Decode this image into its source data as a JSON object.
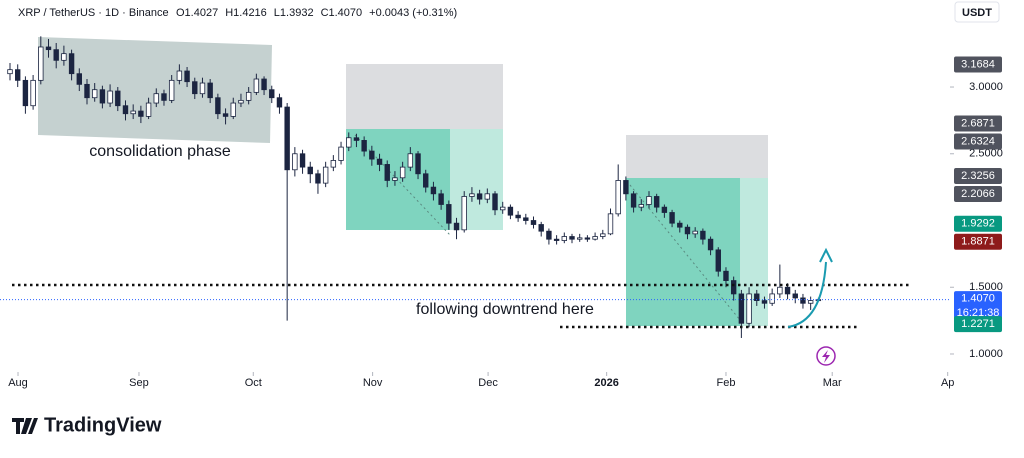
{
  "header": {
    "symbol": "XRP / TetherUS · 1D · Binance",
    "ohlc": [
      "O1.4027",
      "H1.4216",
      "L1.3932",
      "C1.4070",
      "+0.0043 (+0.31%)"
    ],
    "currency": "USDT"
  },
  "annotations": {
    "consolidation": "consolidation phase",
    "downtrend": "following downtrend here"
  },
  "logo": "TradingView",
  "chart_data": {
    "type": "candlestick",
    "up_color": "#ffffff",
    "down_color": "#1c2541",
    "wick_color": "#1c2541",
    "xlim": [
      -1.3,
      122.1
    ],
    "ylim": [
      0.88,
      3.652
    ],
    "xticks": [
      {
        "value": 1.04,
        "label": "Aug"
      },
      {
        "value": 16.75,
        "label": "Sep"
      },
      {
        "value": 31.6,
        "label": "Oct"
      },
      {
        "value": 47.1,
        "label": "Nov"
      },
      {
        "value": 62.1,
        "label": "Dec"
      },
      {
        "value": 77.5,
        "label": "2026"
      },
      {
        "value": 93,
        "label": "Feb"
      },
      {
        "value": 106.8,
        "label": "Mar"
      },
      {
        "value": 121.8,
        "label": "Ap"
      }
    ],
    "yticks": [
      {
        "value": 1,
        "label": "1.0000"
      },
      {
        "value": 1.5,
        "label": "1.5000"
      },
      {
        "value": 2.5,
        "label": "2.5000"
      },
      {
        "value": 3,
        "label": "3.0000"
      }
    ],
    "price_tags": [
      {
        "value": 3.1684,
        "label": "3.1684",
        "color": "#50535e"
      },
      {
        "value": 2.6871,
        "label": "2.6871",
        "color": "#50535e"
      },
      {
        "value": 2.6324,
        "label": "2.6324",
        "color": "#50535e"
      },
      {
        "value": 2.3256,
        "label": "2.3256",
        "color": "#50535e"
      },
      {
        "value": 2.2066,
        "label": "2.2066",
        "color": "#50535e"
      },
      {
        "value": 1.9292,
        "label": "1.9292",
        "color": "#089981"
      },
      {
        "value": 1.8871,
        "label": "1.8871",
        "color": "#8e1b1b"
      },
      {
        "value": 1.407,
        "label": "1.4070",
        "color": "#2962ff",
        "countdown": "16:21:38"
      },
      {
        "value": 1.2271,
        "label": "1.2271",
        "color": "#089981"
      }
    ],
    "open": [
      3.1,
      3.13,
      3.05,
      2.86,
      3.05,
      3.3,
      3.28,
      3.2,
      3.25,
      3.1,
      3.02,
      2.92,
      2.98,
      2.88,
      2.97,
      2.86,
      2.8,
      2.82,
      2.78,
      2.88,
      2.95,
      2.9,
      3.05,
      3.12,
      3.04,
      2.95,
      3.03,
      2.92,
      2.8,
      2.78,
      2.88,
      2.9,
      2.96,
      3.06,
      2.98,
      2.92,
      2.85,
      2.38,
      2.5,
      2.4,
      2.35,
      2.28,
      2.4,
      2.45,
      2.55,
      2.62,
      2.6,
      2.52,
      2.46,
      2.42,
      2.3,
      2.32,
      2.4,
      2.5,
      2.35,
      2.25,
      2.2,
      2.12,
      1.98,
      1.93,
      2.18,
      2.2,
      2.16,
      2.2,
      2.08,
      2.1,
      2.04,
      2.02,
      2.0,
      1.97,
      1.92,
      1.86,
      1.85,
      1.88,
      1.86,
      1.87,
      1.86,
      1.88,
      1.9,
      2.05,
      2.3,
      2.2,
      2.1,
      2.12,
      2.18,
      2.1,
      2.06,
      1.98,
      1.95,
      1.9,
      1.92,
      1.86,
      1.78,
      1.62,
      1.55,
      1.45,
      1.23,
      1.45,
      1.4,
      1.38,
      1.45,
      1.5,
      1.45,
      1.42,
      1.38,
      1.4027
    ],
    "high": [
      3.18,
      3.17,
      3.08,
      3.09,
      3.38,
      3.36,
      3.33,
      3.31,
      3.28,
      3.14,
      3.06,
      3.03,
      3.01,
      3.02,
      3.0,
      2.9,
      2.87,
      2.86,
      2.92,
      2.99,
      2.98,
      3.09,
      3.17,
      3.15,
      3.07,
      3.07,
      3.06,
      2.95,
      2.84,
      2.92,
      2.95,
      3.0,
      3.1,
      3.08,
      3.01,
      2.95,
      2.88,
      2.55,
      2.53,
      2.44,
      2.38,
      2.44,
      2.49,
      2.59,
      2.66,
      2.65,
      2.63,
      2.56,
      2.5,
      2.45,
      2.37,
      2.44,
      2.55,
      2.52,
      2.38,
      2.29,
      2.23,
      2.15,
      2.02,
      2.22,
      2.25,
      2.23,
      2.24,
      2.22,
      2.14,
      2.12,
      2.07,
      2.05,
      2.03,
      1.99,
      1.94,
      1.89,
      1.91,
      1.9,
      1.9,
      1.89,
      1.91,
      1.93,
      2.09,
      2.42,
      2.33,
      2.22,
      2.16,
      2.22,
      2.2,
      2.12,
      2.08,
      2.0,
      1.97,
      1.95,
      1.94,
      1.88,
      1.8,
      1.65,
      1.58,
      1.48,
      1.5,
      1.48,
      1.43,
      1.49,
      1.67,
      1.53,
      1.48,
      1.45,
      1.43,
      1.4216
    ],
    "low": [
      3.05,
      3.0,
      2.8,
      2.83,
      3.02,
      3.22,
      3.14,
      3.16,
      3.05,
      2.97,
      2.87,
      2.89,
      2.84,
      2.85,
      2.82,
      2.75,
      2.76,
      2.73,
      2.76,
      2.85,
      2.86,
      2.88,
      3.02,
      3.0,
      2.91,
      2.92,
      2.88,
      2.76,
      2.72,
      2.76,
      2.85,
      2.87,
      2.94,
      2.94,
      2.88,
      2.8,
      1.25,
      2.33,
      2.35,
      2.28,
      2.2,
      2.25,
      2.37,
      2.42,
      2.52,
      2.55,
      2.48,
      2.41,
      2.37,
      2.25,
      2.26,
      2.29,
      2.37,
      2.31,
      2.21,
      2.15,
      2.08,
      1.93,
      1.86,
      1.91,
      2.14,
      2.12,
      2.13,
      2.04,
      2.05,
      2.01,
      1.99,
      1.97,
      1.94,
      1.88,
      1.82,
      1.82,
      1.83,
      1.83,
      1.84,
      1.84,
      1.85,
      1.86,
      1.89,
      2.03,
      2.15,
      2.06,
      2.07,
      2.09,
      2.06,
      2.02,
      1.95,
      1.91,
      1.86,
      1.87,
      1.82,
      1.74,
      1.58,
      1.5,
      1.4,
      1.12,
      1.2,
      1.36,
      1.34,
      1.36,
      1.42,
      1.41,
      1.38,
      1.34,
      1.33,
      1.3932
    ],
    "close": [
      3.13,
      3.05,
      2.86,
      3.05,
      3.3,
      3.28,
      3.2,
      3.25,
      3.1,
      3.02,
      2.92,
      2.98,
      2.88,
      2.97,
      2.86,
      2.8,
      2.82,
      2.78,
      2.88,
      2.95,
      2.9,
      3.05,
      3.12,
      3.04,
      2.95,
      3.03,
      2.92,
      2.8,
      2.78,
      2.88,
      2.9,
      2.96,
      3.06,
      2.98,
      2.92,
      2.85,
      2.38,
      2.5,
      2.4,
      2.35,
      2.28,
      2.4,
      2.45,
      2.55,
      2.62,
      2.6,
      2.52,
      2.46,
      2.42,
      2.3,
      2.32,
      2.4,
      2.5,
      2.35,
      2.25,
      2.2,
      2.12,
      1.98,
      1.93,
      2.18,
      2.2,
      2.16,
      2.2,
      2.08,
      2.1,
      2.04,
      2.02,
      2.0,
      1.97,
      1.92,
      1.86,
      1.85,
      1.88,
      1.86,
      1.87,
      1.86,
      1.88,
      1.9,
      2.05,
      2.3,
      2.2,
      2.1,
      2.12,
      2.18,
      2.1,
      2.06,
      1.98,
      1.95,
      1.9,
      1.92,
      1.86,
      1.78,
      1.62,
      1.55,
      1.45,
      1.23,
      1.45,
      1.4,
      1.38,
      1.45,
      1.5,
      1.45,
      1.42,
      1.38,
      1.4,
      1.407
    ]
  }
}
